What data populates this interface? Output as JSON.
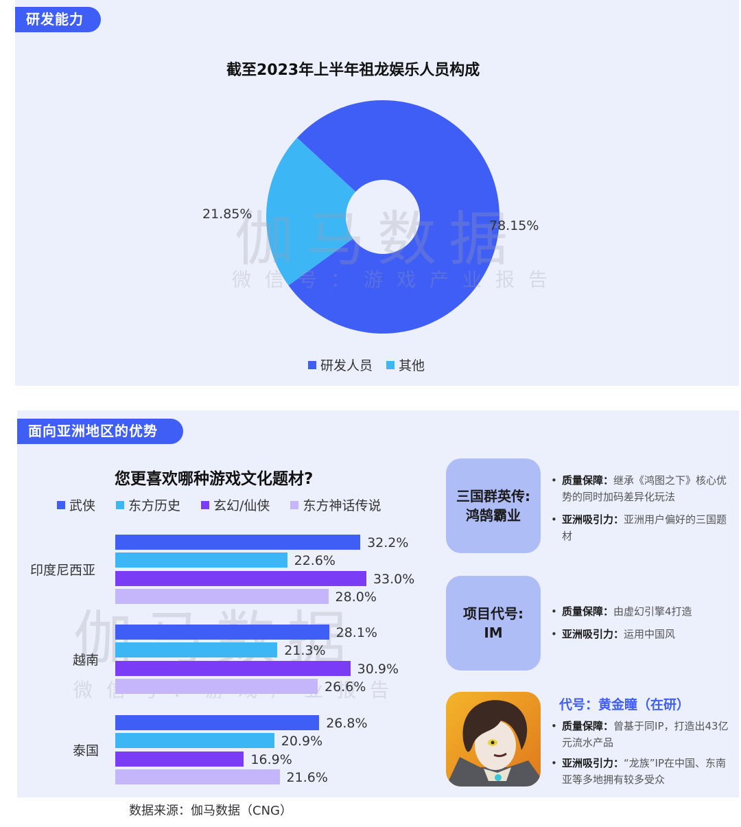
{
  "sections": {
    "rd": {
      "tag": "研发能力"
    },
    "asia": {
      "tag": "面向亚洲地区的优势"
    }
  },
  "colors": {
    "brand_blue": "#3F5EF5",
    "light_blue": "#3DB6F6",
    "purple": "#7A3CF5",
    "lavender": "#C5B5FA",
    "panel_bg": "#ECEFFC",
    "card_bg": "#AEBDF6"
  },
  "watermark": {
    "main": "伽马数据",
    "sub": "微信号：游戏产业报告"
  },
  "chart_data": [
    {
      "type": "pie",
      "subtype": "donut",
      "title": "截至2023年上半年祖龙娱乐人员构成",
      "categories": [
        "研发人员",
        "其他"
      ],
      "values": [
        78.15,
        21.85
      ],
      "labels": [
        "78.15%",
        "21.85%"
      ],
      "colors": [
        "#3F5EF5",
        "#3DB6F6"
      ],
      "legend_position": "bottom"
    },
    {
      "type": "bar",
      "orientation": "horizontal",
      "title": "您更喜欢哪种游戏文化题材?",
      "categories": [
        "印度尼西亚",
        "越南",
        "泰国"
      ],
      "series": [
        {
          "name": "武侠",
          "color": "#3F5EF5",
          "values": [
            32.2,
            28.1,
            26.8
          ],
          "labels": [
            "32.2%",
            "28.1%",
            "26.8%"
          ]
        },
        {
          "name": "东方历史",
          "color": "#3DB6F6",
          "values": [
            22.6,
            21.3,
            20.9
          ],
          "labels": [
            "22.6%",
            "21.3%",
            "20.9%"
          ]
        },
        {
          "name": "玄幻/仙侠",
          "color": "#7A3CF5",
          "values": [
            33.0,
            30.9,
            16.9
          ],
          "labels": [
            "33.0%",
            "30.9%",
            "16.9%"
          ]
        },
        {
          "name": "东方神话传说",
          "color": "#C5B5FA",
          "values": [
            28.0,
            26.6,
            21.6
          ],
          "labels": [
            "28.0%",
            "26.6%",
            "21.6%"
          ]
        }
      ],
      "unit": "%",
      "grid": false,
      "legend_position": "top"
    }
  ],
  "cards": [
    {
      "title_line1": "三国群英传:",
      "title_line2": "鸿鹄霸业",
      "points": [
        {
          "label": "质量保障：",
          "text": "继承《鸿图之下》核心优势的同时加码差异化玩法"
        },
        {
          "label": "亚洲吸引力：",
          "text": "亚洲用户偏好的三国题材"
        }
      ]
    },
    {
      "title_line1": "项目代号:",
      "title_line2": "IM",
      "points": [
        {
          "label": "质量保障：",
          "text": "由虚幻引擎4打造"
        },
        {
          "label": "亚洲吸引力：",
          "text": "运用中国风"
        }
      ]
    },
    {
      "title": "代号：黄金瞳（在研）",
      "image": "anime-character-game-icon",
      "points": [
        {
          "label": "质量保障：",
          "text": "曾基于同IP，打造出43亿元流水产品"
        },
        {
          "label": "亚洲吸引力：",
          "text": "“龙族”IP在中国、东南亚等多地拥有较多受众"
        }
      ]
    }
  ],
  "source": "数据来源：伽马数据（CNG）"
}
